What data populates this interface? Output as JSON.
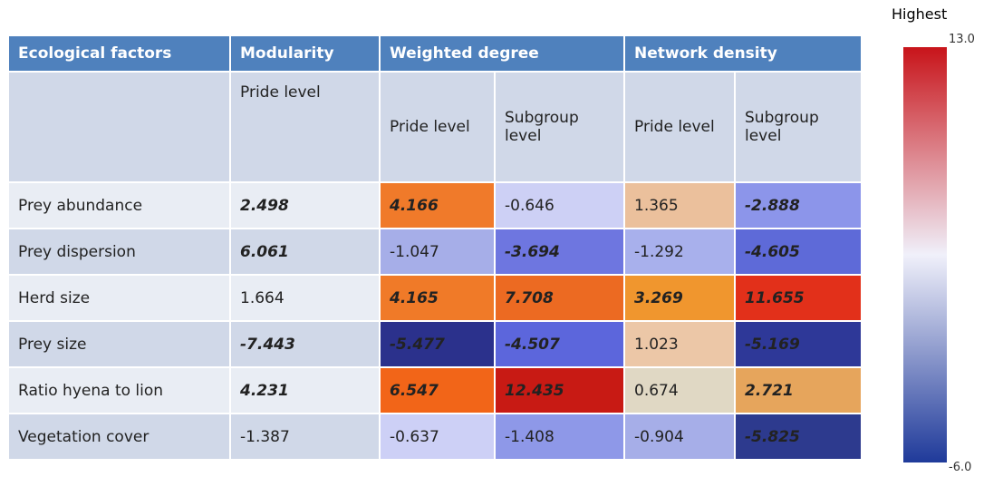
{
  "table": {
    "header": [
      "Ecological factors",
      "Modularity",
      "Weighted degree",
      "Network density"
    ],
    "subheader": [
      "Pride level",
      "Pride level",
      "Subgroup level",
      "Pride level",
      "Subgroup level"
    ],
    "rows": [
      {
        "label": "Prey abundance",
        "cells": [
          {
            "text": "2.498",
            "bold": true
          },
          {
            "text": "4.166",
            "bold": true,
            "color": "#f07a2a"
          },
          {
            "text": "-0.646",
            "bold": false,
            "color": "#cdd0f5"
          },
          {
            "text": "1.365",
            "bold": false,
            "color": "#ebc09c"
          },
          {
            "text": "-2.888",
            "bold": true,
            "color": "#8c95ea"
          }
        ]
      },
      {
        "label": "Prey dispersion",
        "cells": [
          {
            "text": "6.061",
            "bold": true
          },
          {
            "text": "-1.047",
            "bold": false,
            "color": "#a6aee8"
          },
          {
            "text": "-3.694",
            "bold": true,
            "color": "#6e76e0"
          },
          {
            "text": "-1.292",
            "bold": false,
            "color": "#a8b0ec"
          },
          {
            "text": "-4.605",
            "bold": true,
            "color": "#5e6ad8"
          }
        ]
      },
      {
        "label": "Herd size",
        "cells": [
          {
            "text": "1.664",
            "bold": false
          },
          {
            "text": "4.165",
            "bold": true,
            "color": "#f07a28"
          },
          {
            "text": "7.708",
            "bold": true,
            "color": "#ec6a22"
          },
          {
            "text": "3.269",
            "bold": true,
            "color": "#f0962e"
          },
          {
            "text": "11.655",
            "bold": true,
            "color": "#e2301a"
          }
        ]
      },
      {
        "label": "Prey size",
        "cells": [
          {
            "text": "-7.443",
            "bold": true
          },
          {
            "text": "-5.477",
            "bold": true,
            "color": "#2b318c"
          },
          {
            "text": "-4.507",
            "bold": true,
            "color": "#5c66dc"
          },
          {
            "text": "1.023",
            "bold": false,
            "color": "#ecc7a7"
          },
          {
            "text": "-5.169",
            "bold": true,
            "color": "#2e3898"
          }
        ]
      },
      {
        "label": "Ratio hyena to lion",
        "cells": [
          {
            "text": "4.231",
            "bold": true
          },
          {
            "text": "6.547",
            "bold": true,
            "color": "#f26518"
          },
          {
            "text": "12.435",
            "bold": true,
            "color": "#c81a14"
          },
          {
            "text": "0.674",
            "bold": false,
            "color": "#e0d8c4"
          },
          {
            "text": "2.721",
            "bold": true,
            "color": "#e6a55c"
          }
        ]
      },
      {
        "label": "Vegetation cover",
        "cells": [
          {
            "text": "-1.387",
            "bold": false
          },
          {
            "text": "-0.637",
            "bold": false,
            "color": "#cdd0f6"
          },
          {
            "text": "-1.408",
            "bold": false,
            "color": "#8e98e8"
          },
          {
            "text": "-0.904",
            "bold": false,
            "color": "#a6aee8"
          },
          {
            "text": "-5.825",
            "bold": true,
            "color": "#2d3a8e"
          }
        ]
      }
    ]
  },
  "legend": {
    "title": "Highest",
    "max": "13.0",
    "min": "-6.0",
    "colors": [
      "#c8141a",
      "#f0f0fa",
      "#1f3a9a"
    ]
  }
}
